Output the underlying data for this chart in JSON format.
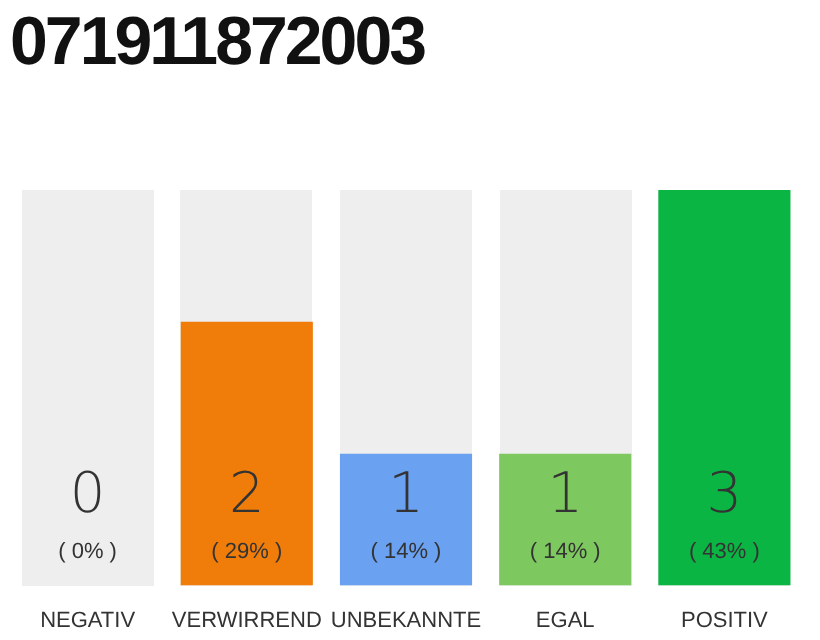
{
  "chart_data": {
    "type": "bar",
    "title": "071911872003",
    "categories": [
      "NEGATIV",
      "VERWIRREND",
      "UNBEKANNTE",
      "EGAL",
      "POSITIV"
    ],
    "values": [
      0,
      2,
      1,
      1,
      3
    ],
    "colors": [
      "#999999",
      "#f07d0a",
      "#6aa1f0",
      "#7ec95f",
      "#0bb543"
    ],
    "ylim": [
      0,
      3
    ],
    "data_labels": true,
    "annotations": [
      "( 0% )",
      "( 29% )",
      "( 14% )",
      "( 14% )",
      "( 43% )"
    ],
    "grid": false,
    "legend": false
  }
}
